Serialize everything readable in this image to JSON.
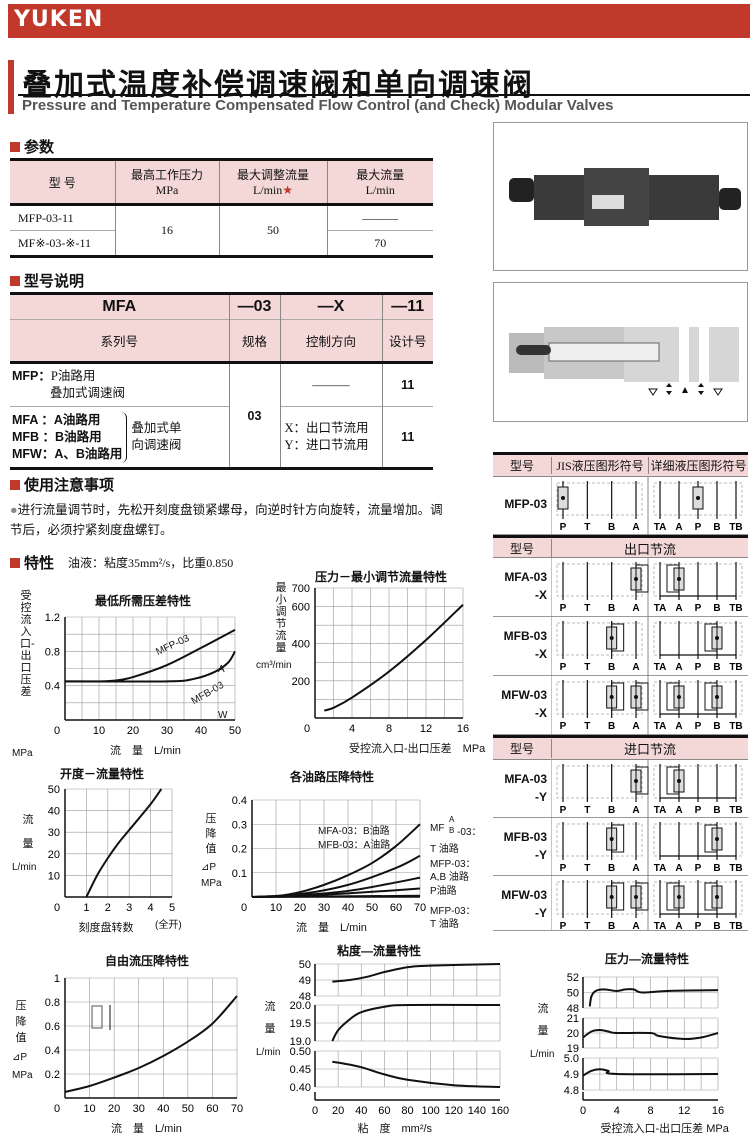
{
  "brand": "YUKEN",
  "title_cn": "叠加式温度补偿调速阀和单向调速阀",
  "title_en": "Pressure and Temperature Compensated Flow Control (and Check) Modular Valves",
  "colors": {
    "accent": "#c0392b",
    "header_fill": "#f4d7d7"
  },
  "specs": {
    "heading": "参数",
    "headers": [
      {
        "l1": "型 号",
        "l2": ""
      },
      {
        "l1": "最高工作压力",
        "l2": "MPa"
      },
      {
        "l1": "最大调整流量",
        "l2": "L/min",
        "mark": "★"
      },
      {
        "l1": "最大流量",
        "l2": "L/min"
      }
    ],
    "rows": [
      {
        "model": "MFP-03-11",
        "max_flow": "———"
      },
      {
        "model": "MF※-03-※-11",
        "max_flow": "70"
      }
    ],
    "pressure": "16",
    "adj_flow": "50"
  },
  "model_code": {
    "heading": "型号说明",
    "codes": [
      "MFA",
      "—03",
      "—X",
      "—11"
    ],
    "labels": [
      "系列号",
      "规格",
      "控制方向",
      "设计号"
    ],
    "mfp": {
      "code": "MFP：",
      "desc1": "P油路用",
      "desc2": "叠加式调速阀",
      "dir": "———",
      "design": "11"
    },
    "size": "03",
    "mfa": "MFA ：A油路用",
    "mfb": "MFB ：B油路用",
    "mfw": "MFW：A、B油路用",
    "group1": "叠加式单",
    "group2": "向调速阀",
    "x": "X：出口节流用",
    "y": "Y：进口节流用",
    "design2": "11"
  },
  "notes": {
    "heading": "使用注意事项",
    "text": "进行流量调节时，先松开刻度盘锁紧螺母，向逆时针方向旋转，流量增加。调节后，必须拧紧刻度盘螺钉。"
  },
  "characteristics": {
    "heading": "特性",
    "fluid": "油液：粘度35mm²/s，比重0.850"
  },
  "symbols": {
    "header1": [
      "型号",
      "JIS液压图形符号",
      "详细液压图形符号"
    ],
    "header_x": [
      "型号",
      "出口节流"
    ],
    "header_y": [
      "型号",
      "进口节流"
    ],
    "jis_ports": [
      "P",
      "T",
      "B",
      "A"
    ],
    "detail_ports": [
      "TA",
      "A",
      "P",
      "B",
      "TB"
    ],
    "rows": [
      {
        "model1": "MFP-03",
        "model2": "",
        "jis": [
          "P"
        ],
        "detail": [
          "P"
        ]
      },
      {
        "model1": "MFA-03",
        "model2": "-X",
        "jis": [
          "A"
        ],
        "detail": [
          "A"
        ]
      },
      {
        "model1": "MFB-03",
        "model2": "-X",
        "jis": [
          "B"
        ],
        "detail": [
          "B"
        ]
      },
      {
        "model1": "MFW-03",
        "model2": "-X",
        "jis": [
          "B",
          "A"
        ],
        "detail": [
          "A",
          "B"
        ]
      },
      {
        "model1": "MFA-03",
        "model2": "-Y",
        "jis": [
          "A"
        ],
        "detail": [
          "A"
        ]
      },
      {
        "model1": "MFB-03",
        "model2": "-Y",
        "jis": [
          "B"
        ],
        "detail": [
          "B"
        ]
      },
      {
        "model1": "MFW-03",
        "model2": "-Y",
        "jis": [
          "B",
          "A"
        ],
        "detail": [
          "A",
          "B"
        ]
      }
    ]
  },
  "chart_data": [
    {
      "id": "c1",
      "type": "line",
      "title": "最低所需压差特性",
      "xlabel": "流　量　L/min",
      "ylabel": "受控流入口-出口压差",
      "yunit": "MPa",
      "xlim": [
        0,
        50
      ],
      "ylim": [
        0,
        1.2
      ],
      "xticks": [
        0,
        10,
        20,
        30,
        40,
        50
      ],
      "yticks": [
        0.4,
        0.8,
        1.2
      ],
      "xgrid": 5,
      "ygrid": 0.2,
      "grid": true,
      "series": [
        {
          "name": "MFP-03",
          "points": [
            [
              0,
              0.45
            ],
            [
              10,
              0.45
            ],
            [
              15,
              0.46
            ],
            [
              20,
              0.5
            ],
            [
              30,
              0.64
            ],
            [
              40,
              0.84
            ],
            [
              50,
              1.05
            ]
          ]
        },
        {
          "name": "MFA/MFB/MFW-03",
          "points": [
            [
              0,
              0.45
            ],
            [
              30,
              0.45
            ],
            [
              38,
              0.48
            ],
            [
              44,
              0.56
            ],
            [
              48,
              0.67
            ],
            [
              50,
              0.8
            ]
          ]
        }
      ],
      "annotations": [
        "MFP-03",
        "A",
        "MFB-03",
        "W"
      ]
    },
    {
      "id": "c2",
      "type": "line",
      "title": "压力－最小调节流量特性",
      "xlabel": "受控流入口-出口压差　MPa",
      "ylabel": "最小调节流量",
      "yunit": "cm³/min",
      "xlim": [
        0,
        16
      ],
      "ylim": [
        0,
        700
      ],
      "xticks": [
        0,
        4,
        8,
        12,
        16
      ],
      "yticks": [
        200,
        400,
        600,
        700
      ],
      "xgrid": 2,
      "ygrid": 100,
      "grid": true,
      "series": [
        {
          "points": [
            [
              1,
              40
            ],
            [
              2,
              55
            ],
            [
              4,
              110
            ],
            [
              8,
              250
            ],
            [
              12,
              420
            ],
            [
              16,
              610
            ]
          ]
        }
      ]
    },
    {
      "id": "c3",
      "type": "line",
      "title": "开度－流量特性",
      "xlabel": "刻度盘转数",
      "ylabel": "流量",
      "yunit": "L/min",
      "xlim": [
        0,
        5
      ],
      "ylim": [
        0,
        50
      ],
      "xticks": [
        0,
        1,
        2,
        3,
        4,
        5
      ],
      "yticks": [
        10,
        20,
        30,
        40,
        50
      ],
      "xgrid": 1,
      "ygrid": 10,
      "grid": true,
      "xnote": "(全开)",
      "series": [
        {
          "points": [
            [
              1,
              0
            ],
            [
              1.5,
              10
            ],
            [
              2,
              18
            ],
            [
              2.5,
              25
            ],
            [
              3,
              31
            ],
            [
              4,
              43
            ],
            [
              4.5,
              50
            ]
          ]
        }
      ]
    },
    {
      "id": "c4",
      "type": "line",
      "title": "各油路压降特性",
      "xlabel": "流　量　L/min",
      "ylabel": "压降值",
      "yunit2": "⊿P",
      "yunit": "MPa",
      "xlim": [
        0,
        70
      ],
      "ylim": [
        0,
        0.4
      ],
      "xticks": [
        0,
        10,
        20,
        30,
        40,
        50,
        60,
        70
      ],
      "yticks": [
        0.1,
        0.2,
        0.3,
        0.4
      ],
      "xgrid": 10,
      "ygrid": 0.1,
      "grid": true,
      "series": [
        {
          "name": "MFA-03：B油路 / MFB-03：A油路",
          "points": [
            [
              0,
              0
            ],
            [
              10,
              0.003
            ],
            [
              20,
              0.02
            ],
            [
              30,
              0.05
            ],
            [
              40,
              0.09
            ],
            [
              50,
              0.14
            ],
            [
              60,
              0.21
            ],
            [
              70,
              0.3
            ]
          ]
        },
        {
          "name": "MF A/B-03：T油路",
          "points": [
            [
              0,
              0
            ],
            [
              20,
              0.012
            ],
            [
              40,
              0.05
            ],
            [
              60,
              0.12
            ],
            [
              70,
              0.17
            ]
          ]
        },
        {
          "name": "MFP-03：A,B油路",
          "points": [
            [
              0,
              0
            ],
            [
              20,
              0.008
            ],
            [
              40,
              0.025
            ],
            [
              60,
              0.06
            ],
            [
              70,
              0.08
            ]
          ]
        },
        {
          "name": "P油路",
          "points": [
            [
              0,
              0
            ],
            [
              20,
              0.005
            ],
            [
              40,
              0.015
            ],
            [
              60,
              0.028
            ],
            [
              70,
              0.035
            ]
          ]
        },
        {
          "name": "MFP-03：T油路",
          "points": [
            [
              0,
              0
            ],
            [
              70,
              0.005
            ]
          ]
        }
      ],
      "annotations": [
        "MFA-03：B油路",
        "MFB-03：A油路",
        "MF",
        "A",
        "B",
        "-03：",
        "T 油路",
        "MFP-03：",
        "A,B 油路",
        "P油路",
        "MFP-03：",
        "T 油路"
      ]
    },
    {
      "id": "c5",
      "type": "line",
      "title": "自由流压降特性",
      "xlabel": "流　量　L/min",
      "ylabel": "压降值",
      "yunit2": "⊿P",
      "yunit": "MPa",
      "xlim": [
        0,
        70
      ],
      "ylim": [
        0,
        1.0
      ],
      "xticks": [
        0,
        10,
        20,
        30,
        40,
        50,
        60,
        70
      ],
      "yticks": [
        0.2,
        0.4,
        0.6,
        0.8,
        1.0
      ],
      "xgrid": 10,
      "ygrid": 0.2,
      "grid": true,
      "series": [
        {
          "points": [
            [
              0,
              0.05
            ],
            [
              10,
              0.1
            ],
            [
              20,
              0.17
            ],
            [
              30,
              0.25
            ],
            [
              40,
              0.35
            ],
            [
              50,
              0.47
            ],
            [
              60,
              0.62
            ],
            [
              70,
              0.85
            ]
          ]
        }
      ]
    },
    {
      "id": "c6",
      "type": "line",
      "title": "粘度—流量特性",
      "xlabel": "粘　度　mm²/s",
      "ylabel": "流量",
      "yunit": "L/min",
      "xlim": [
        0,
        160
      ],
      "xticks": [
        0,
        20,
        40,
        60,
        80,
        100,
        120,
        140,
        160
      ],
      "xgrid": 20,
      "grid": true,
      "panels": [
        {
          "ylim": [
            48,
            50
          ],
          "yticks": [
            48,
            49,
            50
          ],
          "ytick_labels": [
            "48",
            "49",
            "50"
          ],
          "ygrid": 1,
          "points": [
            [
              15,
              48.9
            ],
            [
              30,
              49
            ],
            [
              45,
              49.2
            ],
            [
              60,
              49.5
            ],
            [
              80,
              49.8
            ],
            [
              100,
              49.9
            ],
            [
              160,
              50
            ]
          ]
        },
        {
          "ylim": [
            19,
            20
          ],
          "yticks": [
            19,
            19.5,
            20
          ],
          "ytick_labels": [
            "19.0",
            "19.5",
            "20.0"
          ],
          "ygrid": 0.5,
          "points": [
            [
              15,
              19.0
            ],
            [
              20,
              19.3
            ],
            [
              30,
              19.6
            ],
            [
              40,
              19.8
            ],
            [
              60,
              19.95
            ],
            [
              80,
              20
            ],
            [
              160,
              20
            ]
          ]
        },
        {
          "ylim": [
            0.4,
            0.5
          ],
          "yticks": [
            0.4,
            0.45,
            0.5
          ],
          "ytick_labels": [
            "0.40",
            "0.45",
            "0.50"
          ],
          "ygrid": 0.05,
          "points": [
            [
              15,
              0.47
            ],
            [
              25,
              0.465
            ],
            [
              40,
              0.455
            ],
            [
              60,
              0.435
            ],
            [
              80,
              0.42
            ],
            [
              120,
              0.405
            ],
            [
              160,
              0.4
            ]
          ]
        }
      ]
    },
    {
      "id": "c7",
      "type": "line",
      "title": "压力—流量特性",
      "xlabel": "受控流入口-出口压差 MPa",
      "ylabel": "流量",
      "yunit": "L/min",
      "xlim": [
        0,
        16
      ],
      "xticks": [
        0,
        4,
        8,
        12,
        16
      ],
      "xgrid": 2,
      "grid": true,
      "panels": [
        {
          "ylim": [
            48,
            52
          ],
          "yticks": [
            48,
            50,
            52
          ],
          "ytick_labels": [
            "48",
            "50",
            "52"
          ],
          "ygrid": 2,
          "points": [
            [
              0.8,
              48.2
            ],
            [
              1,
              49.5
            ],
            [
              1.5,
              50.2
            ],
            [
              2.5,
              50.4
            ],
            [
              4,
              50.2
            ],
            [
              5,
              50.4
            ],
            [
              6,
              50.4
            ],
            [
              7,
              50
            ],
            [
              10,
              50.2
            ],
            [
              16,
              50.3
            ]
          ]
        },
        {
          "ylim": [
            19,
            21
          ],
          "yticks": [
            19,
            20,
            21
          ],
          "ytick_labels": [
            "19",
            "20",
            "21"
          ],
          "ygrid": 1,
          "points": [
            [
              0,
              19.7
            ],
            [
              1,
              20.1
            ],
            [
              2,
              20.2
            ],
            [
              3,
              20.1
            ],
            [
              4,
              20
            ],
            [
              8,
              20
            ],
            [
              9,
              19.8
            ],
            [
              12,
              19.6
            ],
            [
              14,
              19.7
            ],
            [
              16,
              20
            ]
          ]
        },
        {
          "ylim": [
            4.8,
            5.0
          ],
          "yticks": [
            4.8,
            4.9,
            5.0
          ],
          "ytick_labels": [
            "4.8",
            "4.9",
            "5.0"
          ],
          "ygrid": 0.1,
          "points": [
            [
              0,
              4.89
            ],
            [
              1,
              4.92
            ],
            [
              2,
              4.93
            ],
            [
              3,
              4.92
            ],
            [
              4,
              4.9
            ],
            [
              16,
              4.9
            ]
          ]
        }
      ]
    }
  ]
}
